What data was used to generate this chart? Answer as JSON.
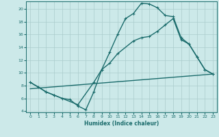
{
  "xlabel": "Humidex (Indice chaleur)",
  "background_color": "#cce9e9",
  "grid_color": "#aacccc",
  "line_color": "#1a6b6b",
  "xlim": [
    -0.5,
    23.5
  ],
  "ylim": [
    3.8,
    21.2
  ],
  "xticks": [
    0,
    1,
    2,
    3,
    4,
    5,
    6,
    7,
    8,
    9,
    10,
    11,
    12,
    13,
    14,
    15,
    16,
    17,
    18,
    19,
    20,
    21,
    22,
    23
  ],
  "yticks": [
    4,
    6,
    8,
    10,
    12,
    14,
    16,
    18,
    20
  ],
  "line1_x": [
    0,
    1,
    2,
    3,
    4,
    5,
    6,
    7,
    8,
    9,
    10,
    11,
    12,
    13,
    14,
    15,
    16,
    17,
    18,
    19,
    20,
    21,
    22,
    23
  ],
  "line1_y": [
    8.5,
    7.8,
    7.0,
    6.5,
    6.0,
    5.8,
    4.8,
    4.2,
    7.0,
    10.5,
    13.2,
    16.0,
    18.5,
    19.3,
    20.9,
    20.8,
    20.2,
    19.0,
    18.8,
    15.5,
    14.5,
    12.5,
    10.5,
    9.8
  ],
  "line2_x": [
    0,
    2,
    3,
    6,
    8,
    9,
    10,
    11,
    13,
    14,
    15,
    16,
    17,
    18,
    19,
    20,
    21,
    22,
    23
  ],
  "line2_y": [
    8.5,
    7.0,
    6.5,
    5.0,
    8.5,
    10.5,
    11.5,
    13.0,
    15.0,
    15.5,
    15.7,
    16.5,
    17.5,
    18.5,
    15.2,
    14.5,
    12.5,
    10.5,
    9.8
  ],
  "line3_x": [
    0,
    23
  ],
  "line3_y": [
    7.5,
    9.8
  ],
  "linewidth": 1.0,
  "markersize": 2.5
}
